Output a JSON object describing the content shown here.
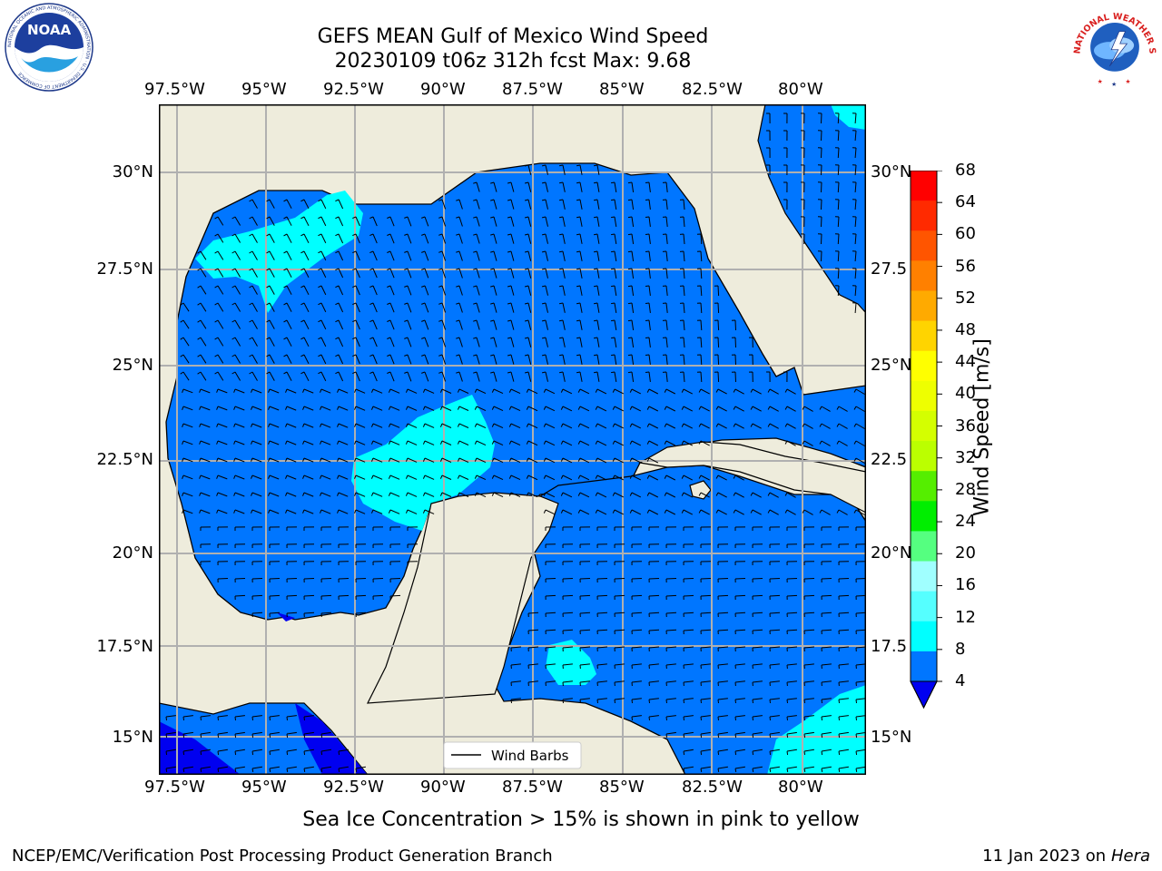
{
  "header": {
    "title": "GEFS MEAN Gulf of Mexico Wind Speed",
    "subtitle": "20230109 t06z 312h fcst   Max: 9.68"
  },
  "logos": {
    "noaa": {
      "text": "NOAA",
      "ring_text": "NATIONAL OCEANIC AND ATMOSPHERIC ADMINISTRATION · U.S. DEPARTMENT OF COMMERCE"
    },
    "nws": {
      "ring_text": "NATIONAL WEATHER SERVICE"
    }
  },
  "map": {
    "lon_labels": [
      "97.5°W",
      "95°W",
      "92.5°W",
      "90°W",
      "87.5°W",
      "85°W",
      "82.5°W",
      "80°W"
    ],
    "lat_labels": [
      "30°N",
      "27.5°N",
      "25°N",
      "22.5°N",
      "20°N",
      "17.5°N",
      "15°N"
    ],
    "lat_labels_right": [
      "30°N",
      "27.5",
      "25°N",
      "22.5",
      "20°N",
      "17.5",
      "15°N"
    ],
    "legend_label": "Wind Barbs",
    "colors": {
      "land": "#eeecdc",
      "ocean": "#0076ff",
      "calm": "#0000f0",
      "light": "#00ffff",
      "grid": "#b0b0b0"
    }
  },
  "colorbar": {
    "label": "Wind Speed [m/s]",
    "ticks": [
      "68",
      "64",
      "60",
      "56",
      "52",
      "48",
      "44",
      "40",
      "36",
      "32",
      "28",
      "24",
      "20",
      "16",
      "12",
      "8",
      "4"
    ],
    "colors": [
      "#ff0000",
      "#ff2a00",
      "#ff5500",
      "#ff8000",
      "#ffaa00",
      "#ffd400",
      "#ffff00",
      "#eeff00",
      "#d4ff00",
      "#bbff00",
      "#55ee00",
      "#00ee00",
      "#55ff80",
      "#a0ffff",
      "#55ffff",
      "#00ffff",
      "#0076ff"
    ],
    "extend_color": "#0000f0"
  },
  "note": "Sea Ice Concentration > 15% is shown in pink to yellow",
  "footer": {
    "left": "NCEP/EMC/Verification Post Processing Product Generation Branch",
    "date": "11 Jan 2023 on ",
    "machine": "Hera"
  }
}
